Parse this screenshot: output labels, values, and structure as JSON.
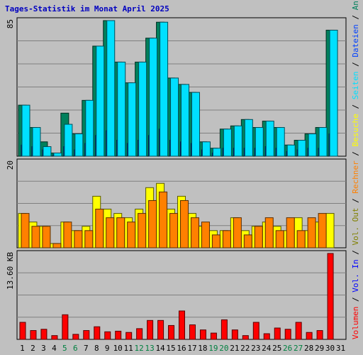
{
  "title": "Tages-Statistik im Monat April 2025",
  "colors": {
    "background": "#c0c0c0",
    "title": "#0000c0",
    "gridline": "#808080",
    "anfragen": "#00805c",
    "dateien": "#0040ff",
    "seiten": "#00e0ff",
    "besuche": "#ffff00",
    "rechner": "#ff8000",
    "vol_out": "#808000",
    "vol_in": "#0000ff",
    "volumen": "#ff0000",
    "weekend_day": "#008040",
    "weekday": "#000000"
  },
  "chart_data": [
    {
      "type": "bar",
      "name": "top",
      "y_max_label": "85",
      "ylim": [
        0,
        85
      ],
      "legend": [
        {
          "label": "Anfragen",
          "color": "#00805c"
        },
        {
          "label": "Dateien",
          "color": "#0040ff"
        },
        {
          "label": "Seiten",
          "color": "#00e0ff"
        }
      ],
      "categories": [
        "1",
        "2",
        "3",
        "4",
        "5",
        "6",
        "7",
        "8",
        "9",
        "10",
        "11",
        "12",
        "13",
        "14",
        "15",
        "16",
        "17",
        "18",
        "19",
        "20",
        "21",
        "22",
        "23",
        "24",
        "25",
        "26",
        "27",
        "28",
        "29",
        "30",
        "31"
      ],
      "series": [
        {
          "name": "Anfragen",
          "values": [
            32,
            18,
            9,
            2,
            27,
            14,
            35,
            69,
            85,
            59,
            46,
            59,
            74,
            84,
            49,
            45,
            40,
            9,
            5,
            17,
            19,
            23,
            18,
            22,
            18,
            7,
            10,
            14,
            18,
            79,
            0
          ]
        },
        {
          "name": "Dateien",
          "values": [
            7,
            6,
            4,
            1,
            6,
            4,
            8,
            13,
            16,
            10,
            8,
            10,
            13,
            17,
            10,
            9,
            8,
            4,
            2,
            5,
            5,
            5,
            5,
            6,
            5,
            3,
            4,
            5,
            5,
            14,
            0
          ]
        },
        {
          "name": "Seiten",
          "values": [
            32,
            18,
            6,
            2,
            20,
            14,
            35,
            69,
            85,
            59,
            46,
            59,
            74,
            84,
            49,
            45,
            40,
            9,
            5,
            17,
            19,
            23,
            18,
            22,
            18,
            7,
            10,
            14,
            18,
            79,
            0
          ]
        }
      ]
    },
    {
      "type": "bar",
      "name": "middle",
      "y_max_label": "20",
      "ylim": [
        0,
        20
      ],
      "legend": [
        {
          "label": "Besuche",
          "color": "#ffff00"
        },
        {
          "label": "Rechner",
          "color": "#ff8000"
        }
      ],
      "series": [
        {
          "name": "Besuche",
          "values": [
            8,
            6,
            5,
            1,
            6,
            4,
            5,
            12,
            9,
            8,
            7,
            9,
            14,
            15,
            9,
            12,
            8,
            5,
            4,
            4,
            7,
            4,
            5,
            6,
            5,
            4,
            7,
            4,
            6,
            8,
            0
          ]
        },
        {
          "name": "Rechner",
          "values": [
            8,
            5,
            5,
            1,
            6,
            4,
            4,
            9,
            7,
            7,
            6,
            8,
            11,
            13,
            8,
            11,
            7,
            6,
            3,
            4,
            7,
            3,
            5,
            7,
            4,
            7,
            4,
            7,
            8,
            0,
            0
          ]
        }
      ]
    },
    {
      "type": "bar",
      "name": "bottom",
      "y_max_label": "13.60 KB",
      "ylim": [
        0,
        13.6
      ],
      "legend": [
        {
          "label": "Volumen",
          "color": "#ff0000"
        },
        {
          "label": "Vol. In",
          "color": "#0000ff"
        },
        {
          "label": "Vol. Out",
          "color": "#808000"
        }
      ],
      "series": [
        {
          "name": "Volumen",
          "values": [
            2.7,
            1.4,
            1.6,
            0.6,
            3.9,
            0.8,
            1.4,
            2.0,
            1.2,
            1.3,
            1.1,
            1.7,
            3.0,
            3.0,
            2.2,
            4.5,
            2.3,
            1.5,
            1.0,
            3.1,
            1.5,
            0.6,
            2.7,
            0.9,
            1.8,
            1.6,
            2.7,
            1.1,
            1.4,
            13.6,
            0
          ]
        }
      ]
    }
  ],
  "day_labels": [
    "1",
    "2",
    "3",
    "4",
    "5",
    "6",
    "7",
    "8",
    "9",
    "10",
    "11",
    "12",
    "13",
    "14",
    "15",
    "16",
    "17",
    "18",
    "19",
    "20",
    "21",
    "22",
    "23",
    "24",
    "25",
    "26",
    "27",
    "28",
    "29",
    "30",
    "31"
  ],
  "weekend_days": [
    5,
    6,
    12,
    13,
    19,
    20,
    26,
    27
  ]
}
